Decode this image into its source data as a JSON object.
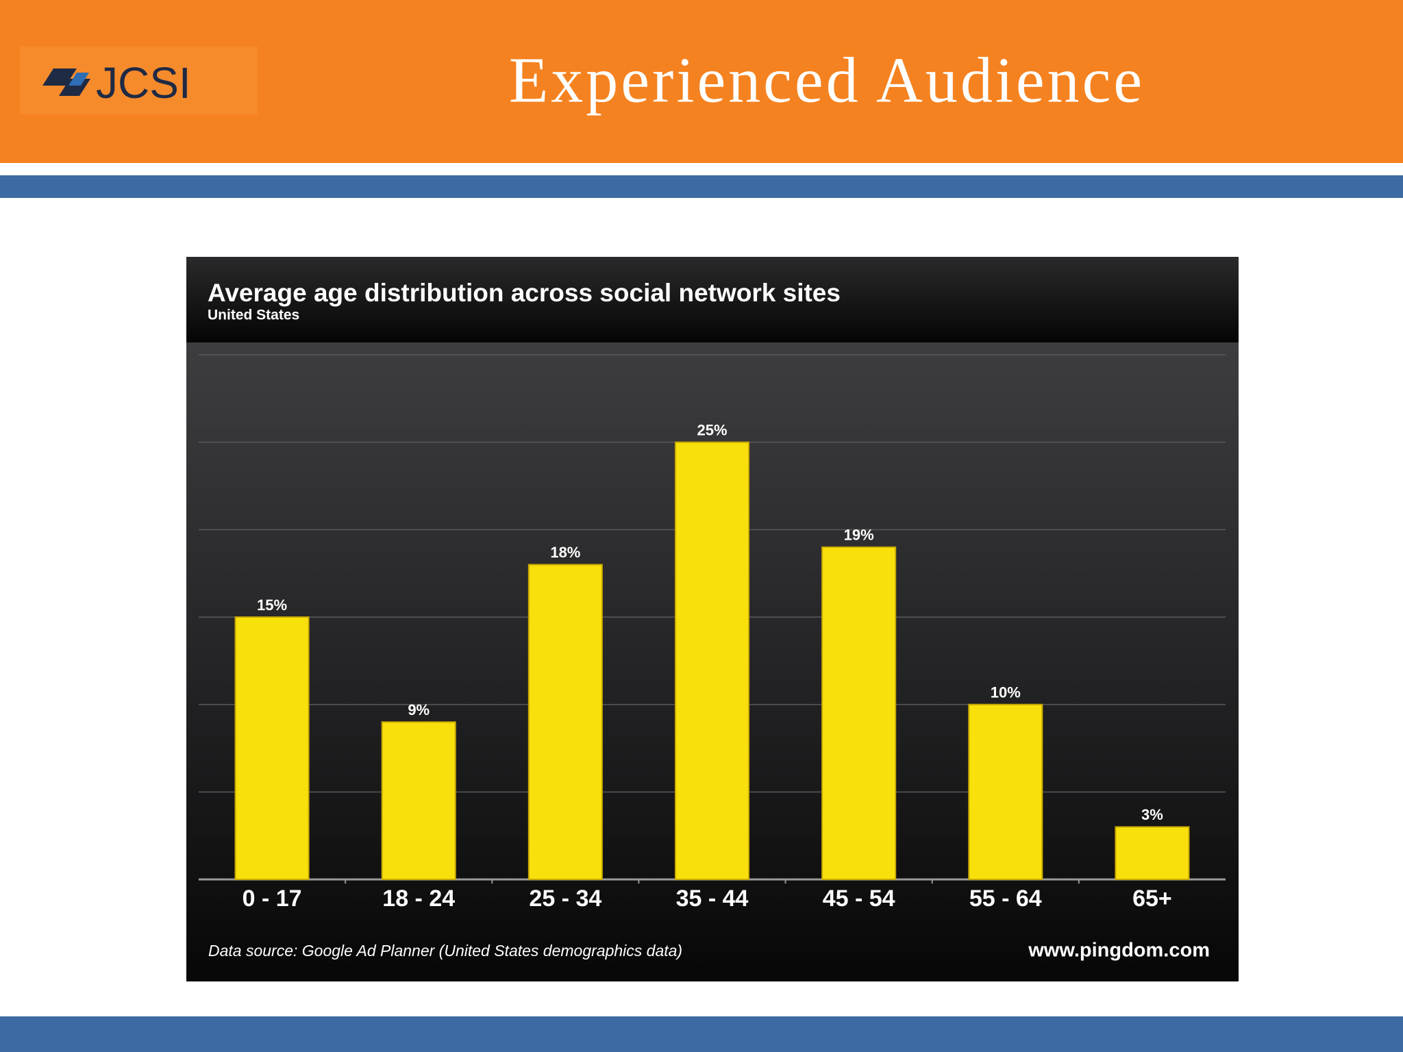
{
  "header": {
    "title": "Experienced Audience",
    "logo": "JCSI"
  },
  "chart_data": {
    "type": "bar",
    "title": "Average age distribution across social network sites",
    "subtitle": "United States",
    "categories": [
      "0 - 17",
      "18 - 24",
      "25 - 34",
      "35 - 44",
      "45 - 54",
      "55 - 64",
      "65+"
    ],
    "values": [
      15,
      9,
      18,
      25,
      19,
      10,
      3
    ],
    "value_labels": [
      "15%",
      "9%",
      "18%",
      "25%",
      "19%",
      "10%",
      "3%"
    ],
    "color": "#f8e00c",
    "ylim": [
      0,
      30
    ],
    "yticks": [
      0,
      5,
      10,
      15,
      20,
      25,
      30
    ],
    "grid": true,
    "source": "Data source: Google Ad Planner (United States demographics data)",
    "credit": "www.pingdom.com"
  }
}
